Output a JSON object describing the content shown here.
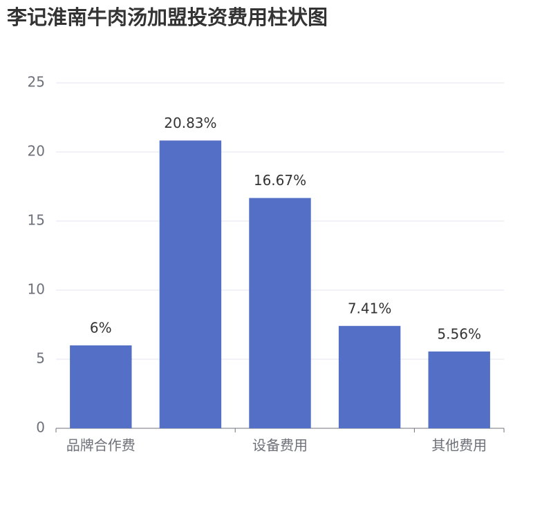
{
  "chart_data": {
    "type": "bar",
    "title": "李记淮南牛肉汤加盟投资费用柱状图",
    "categories": [
      "品牌合作费",
      null,
      "设备费用",
      null,
      "其他费用"
    ],
    "values": [
      6,
      20.83,
      16.67,
      7.41,
      5.56
    ],
    "value_labels": [
      "6%",
      "20.83%",
      "16.67%",
      "7.41%",
      "5.56%"
    ],
    "color": "#5470c6",
    "ylim": [
      0,
      25
    ],
    "yticks": [
      0,
      5,
      10,
      15,
      20,
      25
    ],
    "grid": true
  }
}
